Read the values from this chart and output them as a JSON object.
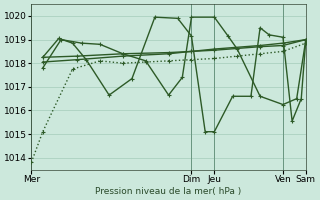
{
  "bg_color": "#cce8dc",
  "grid_color": "#b0d4c4",
  "line_color": "#2d5a27",
  "title": "Pression niveau de la mer( hPa )",
  "ylim": [
    1013.5,
    1020.5
  ],
  "yticks": [
    1014,
    1015,
    1016,
    1017,
    1018,
    1019,
    1020
  ],
  "xlim_days": [
    0,
    6.0
  ],
  "xtick_positions": [
    0.0,
    3.5,
    4.0,
    5.5,
    6.0
  ],
  "xtick_labels": [
    "Mer",
    "Dim",
    "Jeu",
    "Ven",
    "Sam"
  ],
  "vline_positions": [
    0.0,
    3.5,
    4.0,
    5.5,
    6.0
  ],
  "series": [
    {
      "x": [
        0.0,
        0.25,
        0.9,
        1.5,
        2.0,
        2.5,
        3.0,
        3.5,
        4.0,
        4.5,
        5.0,
        5.5,
        6.0
      ],
      "y": [
        1013.8,
        1015.1,
        1017.75,
        1018.1,
        1018.0,
        1018.05,
        1018.1,
        1018.15,
        1018.2,
        1018.3,
        1018.4,
        1018.5,
        1018.85
      ],
      "style": ":",
      "marker": "+",
      "lw": 1.0
    },
    {
      "x": [
        0.25,
        0.65,
        1.1,
        1.5,
        2.0,
        2.5,
        3.0,
        3.3,
        3.5,
        4.0,
        4.3,
        4.5,
        5.0,
        5.5,
        5.8,
        6.0
      ],
      "y": [
        1017.8,
        1019.0,
        1018.85,
        1018.8,
        1018.4,
        1018.1,
        1016.65,
        1017.4,
        1019.95,
        1019.95,
        1019.15,
        1018.6,
        1016.6,
        1016.25,
        1016.5,
        1019.0
      ],
      "style": "-",
      "marker": "+",
      "lw": 1.0
    },
    {
      "x": [
        0.25,
        1.0,
        2.0,
        3.0,
        3.5,
        4.0,
        5.0,
        5.5,
        6.0
      ],
      "y": [
        1018.25,
        1018.3,
        1018.4,
        1018.45,
        1018.5,
        1018.55,
        1018.7,
        1018.75,
        1019.0
      ],
      "style": "-",
      "marker": "+",
      "lw": 1.0
    },
    {
      "x": [
        0.25,
        1.0,
        2.0,
        3.0,
        3.5,
        4.0,
        5.0,
        5.5,
        6.0
      ],
      "y": [
        1018.05,
        1018.15,
        1018.3,
        1018.4,
        1018.5,
        1018.6,
        1018.75,
        1018.85,
        1019.0
      ],
      "style": "-",
      "marker": "+",
      "lw": 1.0
    },
    {
      "x": [
        0.25,
        0.6,
        0.9,
        1.2,
        1.7,
        2.2,
        2.7,
        3.2,
        3.5,
        3.8,
        4.0,
        4.4,
        4.8,
        5.0,
        5.2,
        5.5,
        5.7,
        5.9,
        6.0
      ],
      "y": [
        1018.25,
        1019.05,
        1018.85,
        1018.15,
        1016.65,
        1017.35,
        1019.95,
        1019.9,
        1019.15,
        1015.1,
        1015.1,
        1016.6,
        1016.6,
        1019.5,
        1019.2,
        1019.1,
        1015.55,
        1016.5,
        1019.0
      ],
      "style": "-",
      "marker": "+",
      "lw": 1.0
    }
  ]
}
